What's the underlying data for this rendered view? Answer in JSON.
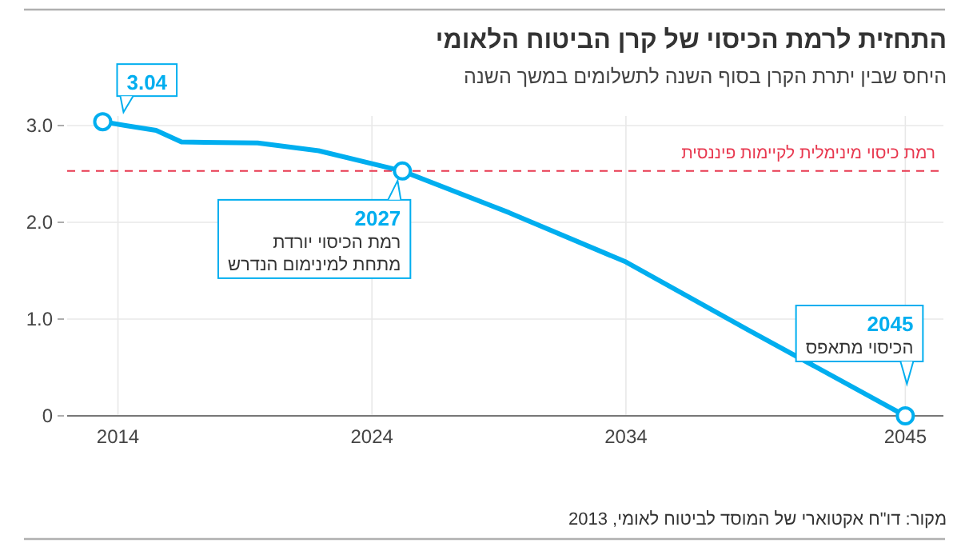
{
  "chart_data": {
    "type": "line",
    "title": "התחזית לרמת הכיסוי של קרן הביטוח הלאומי",
    "subtitle": "היחס שבין יתרת הקרן בסוף השנה לתשלומים במשך השנה",
    "xlim": [
      2012,
      2046.5
    ],
    "xticks": [
      2014,
      2024,
      2034,
      2045
    ],
    "ylim": [
      0,
      3.1
    ],
    "yticks": [
      {
        "value": 0,
        "label": "0"
      },
      {
        "value": 1,
        "label": "1.0"
      },
      {
        "value": 2,
        "label": "2.0"
      },
      {
        "value": 3,
        "label": "3.0"
      }
    ],
    "grid": true,
    "series": [
      {
        "color": "#00aeef",
        "line_style": "solid",
        "marker": "none",
        "x": [
          2013.4,
          2014.3,
          2015.5,
          2016.5,
          2019.5,
          2021.9,
          2025.2,
          2029.4,
          2034,
          2038.8,
          2045
        ],
        "values": [
          3.04,
          3.0,
          2.95,
          2.83,
          2.82,
          2.74,
          2.53,
          2.1,
          1.59,
          0.89,
          0
        ]
      },
      {
        "type": "scatter",
        "color": "#00aeef",
        "marker": "circle",
        "x": [
          2013.4,
          2025.2,
          2045
        ],
        "values": [
          3.04,
          2.53,
          0
        ]
      }
    ],
    "ref_lines": [
      {
        "axis": "y",
        "value": 2.53,
        "label": "רמת כיסוי מינימלית לקיימות פיננסית",
        "color": "#e8384f",
        "line_style": "dashed"
      }
    ],
    "annotations": [
      "3.04",
      "2027",
      "רמת הכיסוי יורדת",
      "מתחת למינימום הנדרש",
      "2045",
      "הכיסוי מתאפס",
      "מקור: דו\"ח אקטוארי של המוסד לביטוח לאומי, 2013"
    ]
  }
}
